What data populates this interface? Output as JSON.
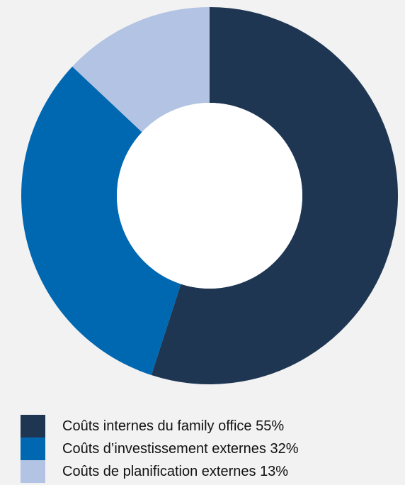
{
  "chart_data": {
    "type": "pie",
    "variant": "donut",
    "title": "",
    "slices": [
      {
        "label": "Coûts internes du family office",
        "value": 55,
        "value_label": "55%",
        "color": "#1e3652"
      },
      {
        "label": "Coûts d’investissement externes",
        "value": 32,
        "value_label": "32%",
        "color": "#0067b1"
      },
      {
        "label": "Coûts de planification externes",
        "value": 13,
        "value_label": "13%",
        "color": "#b2c3e3"
      }
    ],
    "legend_position": "bottom-left"
  }
}
